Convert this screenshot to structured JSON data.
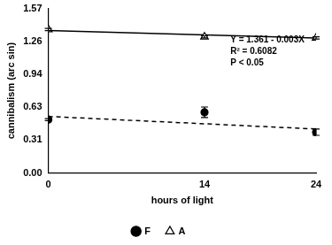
{
  "chart_data": {
    "type": "scatter",
    "x_label": "hours of light",
    "y_label": "cannibalism (arc sin)",
    "xlim": [
      0,
      24
    ],
    "xticks": [
      0,
      14,
      24
    ],
    "ylim": [
      0,
      1.571
    ],
    "yticks": [
      {
        "value": 0,
        "label": "0.00"
      },
      {
        "value": 0.314,
        "label": "0.31"
      },
      {
        "value": 0.628,
        "label": "0.63"
      },
      {
        "value": 0.942,
        "label": "0.94"
      },
      {
        "value": 1.257,
        "label": "1.26"
      },
      {
        "value": 1.571,
        "label": "1.57"
      }
    ],
    "grid": false,
    "legend": "bottom",
    "annotations": [
      "Y = 1.361 - 0.003X",
      "R² = 0.6082",
      "P < 0.05"
    ],
    "series": [
      {
        "name": "F",
        "color": "#000000",
        "marker": "circle",
        "x": [
          0,
          14,
          24
        ],
        "values": [
          0.51,
          0.58,
          0.39
        ],
        "errors": [
          0.01,
          0.05,
          0.03
        ],
        "line_style": "dashed",
        "fit": {
          "x": [
            0,
            24
          ],
          "values": [
            0.54,
            0.42
          ]
        }
      },
      {
        "name": "A",
        "color": "#000000",
        "marker": "triangle-open",
        "x": [
          0,
          14,
          24
        ],
        "values": [
          1.37,
          1.3,
          1.29
        ],
        "errors": [
          0.01,
          0.01,
          0.01
        ],
        "line_style": "solid",
        "fit": {
          "x": [
            0,
            24
          ],
          "values": [
            1.361,
            1.289
          ]
        }
      }
    ]
  }
}
